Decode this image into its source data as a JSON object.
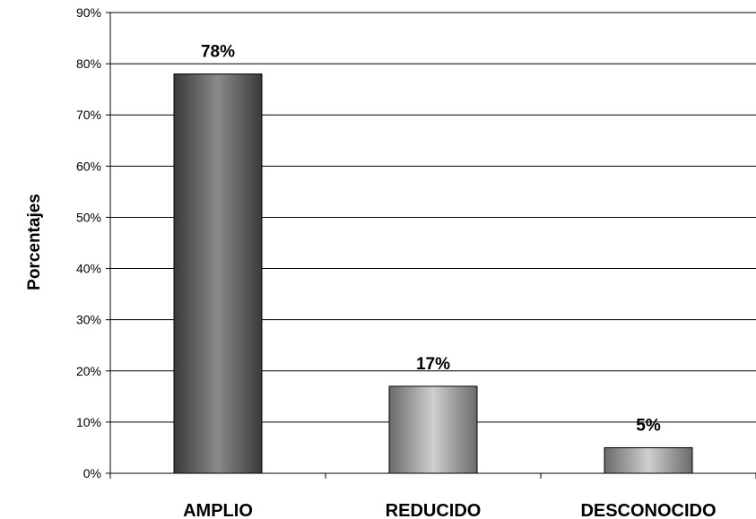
{
  "chart_data": {
    "type": "bar",
    "title": "",
    "xlabel": "",
    "ylabel": "Porcentajes",
    "categories": [
      "AMPLIO",
      "REDUCIDO",
      "DESCONOCIDO"
    ],
    "values": [
      78,
      17,
      5
    ],
    "data_labels": [
      "78%",
      "17%",
      "5%"
    ],
    "ylim": [
      0,
      90
    ],
    "yticks": [
      0,
      10,
      20,
      30,
      40,
      50,
      60,
      70,
      80,
      90
    ],
    "ytick_labels": [
      "0%",
      "10%",
      "20%",
      "30%",
      "40%",
      "50%",
      "60%",
      "70%",
      "80%",
      "90%"
    ],
    "grid": true,
    "legend": "none",
    "colors": {
      "amplio_dark": "#3a3a3a",
      "amplio_light": "#8a8a8a",
      "reducido_dark": "#6a6a6a",
      "reducido_light": "#cfcfcf",
      "desconocido_dark": "#6a6a6a",
      "desconocido_light": "#cfcfcf",
      "grid": "#000000",
      "axis": "#000000"
    }
  }
}
